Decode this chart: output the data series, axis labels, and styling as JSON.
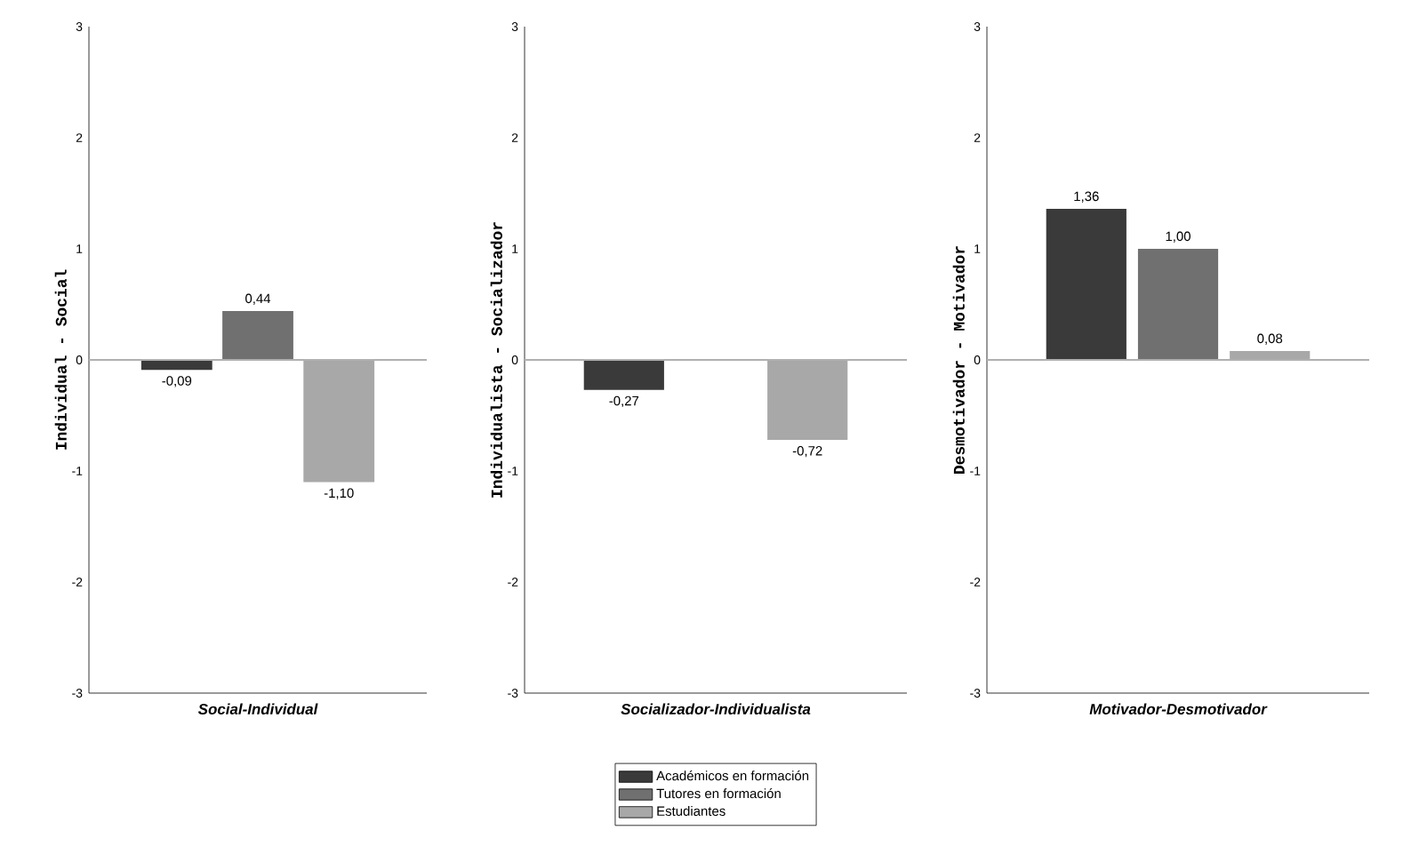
{
  "chart_data": [
    {
      "type": "bar",
      "categories": [
        null
      ],
      "xlabel": "Social-Individual",
      "ylabel": "Individual - Social",
      "ylim": [
        -3,
        3
      ],
      "yticks": [
        -3,
        -2,
        -1,
        0,
        1,
        2,
        3
      ],
      "grid": false,
      "legend": false,
      "ref_lines": [
        {
          "axis": "y",
          "value": 0,
          "color": "#b0b0b0"
        }
      ],
      "series": [
        {
          "color": "#3a3a3a",
          "values": [
            -0.09
          ],
          "value_labels": [
            "-0,09"
          ]
        },
        {
          "color": "#707070",
          "values": [
            0.44
          ],
          "value_labels": [
            "0,44"
          ]
        },
        {
          "color": "#a8a8a8",
          "values": [
            -1.1
          ],
          "value_labels": [
            "-1,10"
          ]
        }
      ]
    },
    {
      "type": "bar",
      "categories": [
        null
      ],
      "xlabel": "Socializador-Individualista",
      "ylabel": "Individualista - Socializador",
      "ylim": [
        -3,
        3
      ],
      "yticks": [
        -3,
        -2,
        -1,
        0,
        1,
        2,
        3
      ],
      "grid": false,
      "legend": "bottom",
      "ref_lines": [
        {
          "axis": "y",
          "value": 0,
          "color": "#b0b0b0"
        }
      ],
      "series": [
        {
          "name": "Académicos en formación",
          "color": "#3a3a3a",
          "values": [
            -0.27
          ],
          "value_labels": [
            "-0,27"
          ]
        },
        {
          "name": "Tutores en formación",
          "color": "#707070",
          "values": [
            null
          ],
          "value_labels": [
            null
          ]
        },
        {
          "name": "Estudiantes",
          "color": "#a8a8a8",
          "values": [
            -0.72
          ],
          "value_labels": [
            "-0,72"
          ]
        }
      ]
    },
    {
      "type": "bar",
      "categories": [
        null
      ],
      "xlabel": "Motivador-Desmotivador",
      "ylabel": "Desmotivador - Motivador",
      "ylim": [
        -3,
        3
      ],
      "yticks": [
        -3,
        -2,
        -1,
        0,
        1,
        2,
        3
      ],
      "grid": false,
      "legend": false,
      "ref_lines": [
        {
          "axis": "y",
          "value": 0,
          "color": "#b0b0b0"
        }
      ],
      "series": [
        {
          "color": "#3a3a3a",
          "values": [
            1.36
          ],
          "value_labels": [
            "1,36"
          ]
        },
        {
          "color": "#707070",
          "values": [
            1.0
          ],
          "value_labels": [
            "1,00"
          ]
        },
        {
          "color": "#a8a8a8",
          "values": [
            0.08
          ],
          "value_labels": [
            "0,08"
          ]
        }
      ]
    }
  ]
}
